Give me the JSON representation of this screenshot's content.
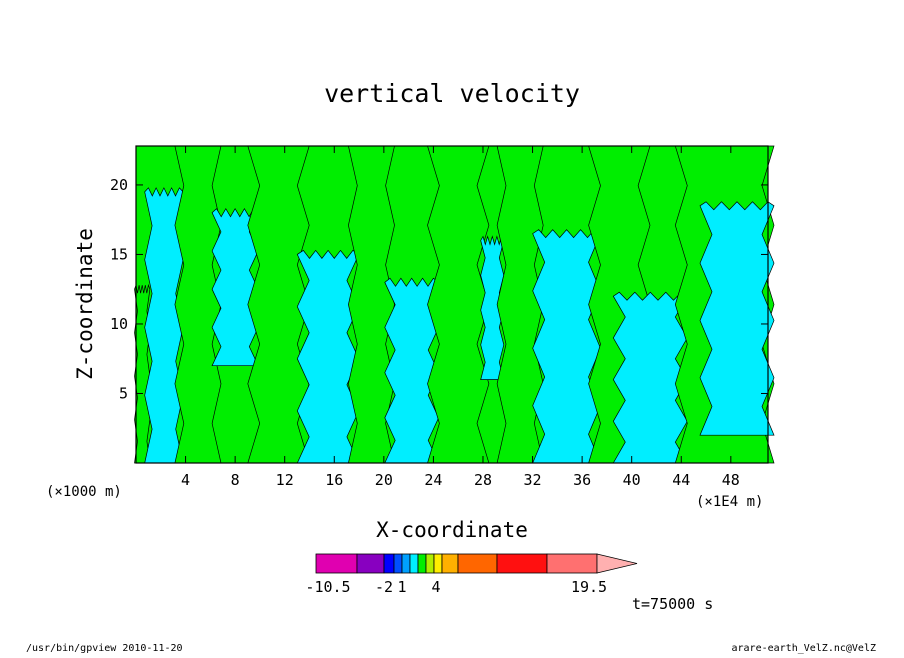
{
  "chart_data": {
    "type": "heatmap",
    "title": "vertical velocity",
    "xlabel": "X-coordinate",
    "ylabel": "Z-coordinate",
    "x_unit_left": "(×1000 m)",
    "x_unit_right": "(×1E4 m)",
    "xlim": [
      0,
      51
    ],
    "ylim": [
      0,
      22.8
    ],
    "x_ticks": [
      "4",
      "8",
      "12",
      "16",
      "20",
      "24",
      "28",
      "32",
      "36",
      "40",
      "44",
      "48"
    ],
    "y_ticks": [
      "5",
      "10",
      "15",
      "20"
    ],
    "time_label": "t=75000 s",
    "colors": {
      "negative": "#00eeff",
      "positive": "#00ee00"
    },
    "bands": [
      {
        "x0": 0,
        "x1": 1.0,
        "z0": 0,
        "z1": 12.5,
        "sign": "positive"
      },
      {
        "x0": 1.0,
        "x1": 3.5,
        "z0": 0,
        "z1": 19.5,
        "sign": "negative"
      },
      {
        "x0": 3.5,
        "x1": 6.5,
        "z0": 0,
        "z1": 22.8,
        "sign": "positive"
      },
      {
        "x0": 6.5,
        "x1": 9.5,
        "z0": 7.0,
        "z1": 18.0,
        "sign": "negative"
      },
      {
        "x0": 9.5,
        "x1": 13.5,
        "z0": 0,
        "z1": 22.8,
        "sign": "positive"
      },
      {
        "x0": 13.5,
        "x1": 17.5,
        "z0": 0,
        "z1": 15.0,
        "sign": "negative"
      },
      {
        "x0": 17.5,
        "x1": 20.5,
        "z0": 0,
        "z1": 22.8,
        "sign": "positive"
      },
      {
        "x0": 20.5,
        "x1": 24.0,
        "z0": 0,
        "z1": 13.0,
        "sign": "negative"
      },
      {
        "x0": 24.0,
        "x1": 28.0,
        "z0": 0,
        "z1": 22.8,
        "sign": "positive"
      },
      {
        "x0": 28.0,
        "x1": 29.5,
        "z0": 6.0,
        "z1": 16.0,
        "sign": "negative"
      },
      {
        "x0": 29.5,
        "x1": 32.5,
        "z0": 0,
        "z1": 22.8,
        "sign": "positive"
      },
      {
        "x0": 32.5,
        "x1": 37.0,
        "z0": 0,
        "z1": 16.5,
        "sign": "negative"
      },
      {
        "x0": 37.0,
        "x1": 41.0,
        "z0": 0,
        "z1": 22.8,
        "sign": "positive"
      },
      {
        "x0": 39.0,
        "x1": 44.0,
        "z0": 0,
        "z1": 12.0,
        "sign": "negative"
      },
      {
        "x0": 44.0,
        "x1": 51.0,
        "z0": 0,
        "z1": 22.8,
        "sign": "positive"
      },
      {
        "x0": 46.0,
        "x1": 51.0,
        "z0": 2.0,
        "z1": 18.5,
        "sign": "negative"
      }
    ],
    "colorbar": {
      "tick_labels": [
        "-10.5",
        "-2",
        "1",
        "4",
        "19.5"
      ],
      "segments": [
        "#e000b0",
        "#8800c0",
        "#0000ff",
        "#0050ff",
        "#00a0ff",
        "#00eeff",
        "#00ee00",
        "#b0ee00",
        "#ffee00",
        "#ffb000",
        "#ff6600",
        "#ff1010",
        "#ff7070",
        "#ffb0b0"
      ]
    }
  },
  "footer": {
    "left": "/usr/bin/gpview   2010-11-20",
    "right": "arare-earth_VelZ.nc@VelZ"
  }
}
